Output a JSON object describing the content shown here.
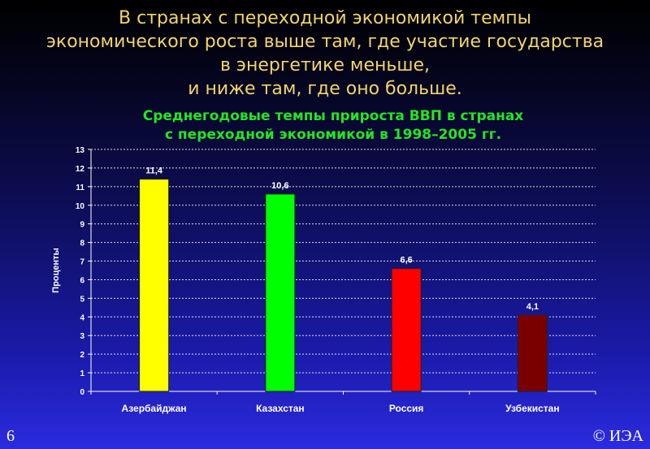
{
  "headline": [
    "В странах с переходной экономикой темпы",
    "экономического роста выше там, где участие государства",
    "в энергетике меньше,",
    "и ниже там, где оно больше."
  ],
  "chart_data": {
    "type": "bar",
    "title_lines": [
      "Среднегодовые темпы прироста ВВП в странах",
      "с переходной экономикой в 1998–2005 гг."
    ],
    "ylabel": "Проценты",
    "xlabel": "",
    "ylim": [
      0,
      13
    ],
    "yticks": [
      0,
      1,
      2,
      3,
      4,
      5,
      6,
      7,
      8,
      9,
      10,
      11,
      12,
      13
    ],
    "grid": true,
    "categories": [
      "Азербайджан",
      "Казахстан",
      "Россия",
      "Узбекистан"
    ],
    "values": [
      11.4,
      10.6,
      6.6,
      4.1
    ],
    "value_labels": [
      "11,4",
      "10,6",
      "6,6",
      "4,1"
    ],
    "colors": [
      "#ffff00",
      "#00ff00",
      "#ff0000",
      "#7a0000"
    ]
  },
  "footer": {
    "slide_number": "6",
    "copyright": "© ИЭА"
  }
}
